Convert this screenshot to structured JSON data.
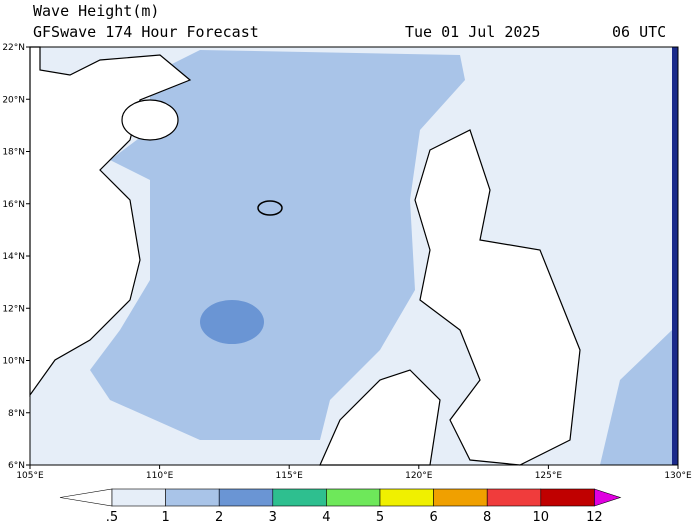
{
  "header": {
    "title": "Wave Height(m)",
    "subtitle": "GFSwave 174 Hour Forecast",
    "date": "Tue 01 Jul 2025",
    "time": "06 UTC"
  },
  "map": {
    "lat_labels": [
      "6°N",
      "8°N",
      "10°N",
      "12°N",
      "14°N",
      "16°N",
      "18°N",
      "20°N",
      "22°N"
    ],
    "lon_labels": [
      "105°E",
      "110°E",
      "115°E",
      "120°E",
      "125°E",
      "130°E"
    ]
  },
  "colorbar": {
    "labels": [
      ".5",
      "1",
      "2",
      "3",
      "4",
      "5",
      "6",
      "8",
      "10",
      "12"
    ],
    "colors": [
      "#ffffff",
      "#e6eef8",
      "#a9c4e8",
      "#6a95d4",
      "#2ebf8f",
      "#6ee85a",
      "#f0f000",
      "#f0a000",
      "#f03c3c",
      "#c00000",
      "#e000e0"
    ]
  }
}
